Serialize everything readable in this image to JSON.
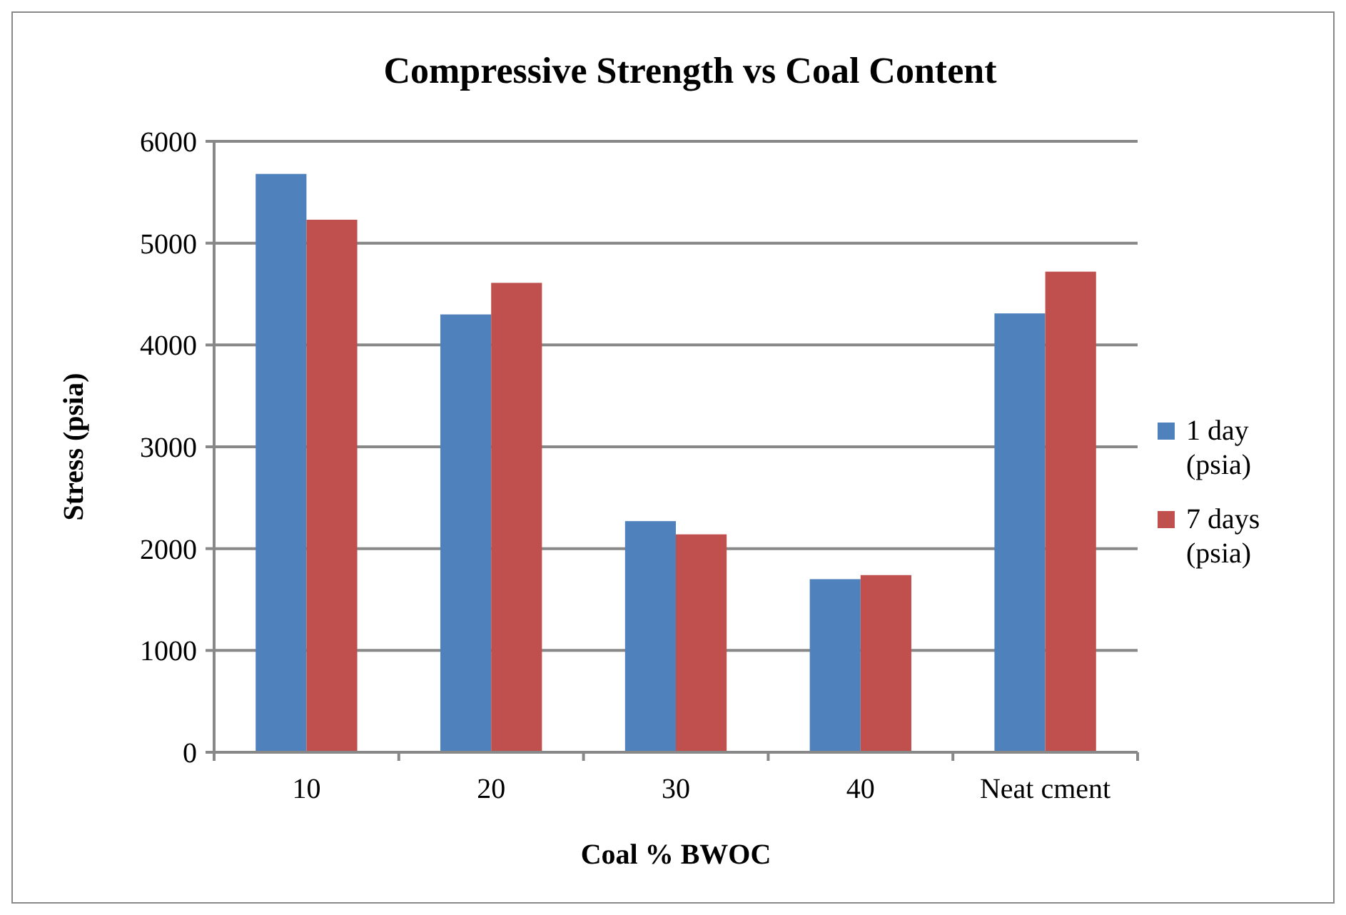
{
  "chart_data": {
    "type": "bar",
    "title": "Compressive Strength vs Coal Content",
    "xlabel": "Coal % BWOC",
    "ylabel": "Stress (psia)",
    "categories": [
      "10",
      "20",
      "30",
      "40",
      "Neat cment"
    ],
    "series": [
      {
        "name": "1 day (psia)",
        "color": "#4f81bd",
        "values": [
          5680,
          4300,
          2270,
          1700,
          4310
        ]
      },
      {
        "name": "7 days (psia)",
        "color": "#c0504d",
        "values": [
          5230,
          4610,
          2140,
          1740,
          4720
        ]
      }
    ],
    "ylim": [
      0,
      6000
    ],
    "yticks": [
      0,
      1000,
      2000,
      3000,
      4000,
      5000,
      6000
    ],
    "grid": "y",
    "legend": "right"
  }
}
